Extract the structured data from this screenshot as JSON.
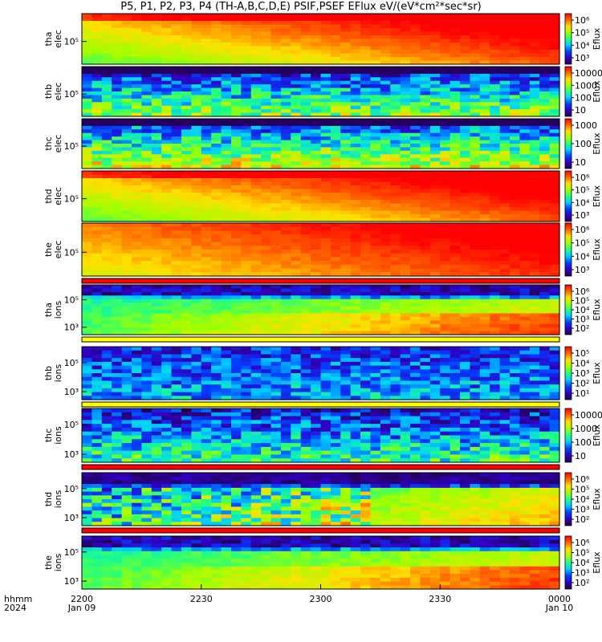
{
  "title": "P5, P1, P2, P3, P4 (TH-A,B,C,D,E) PSIF,PSEF EFlux eV/(eV*cm²*sec*sr)",
  "colors": {
    "red": "#ff0000",
    "yellow": "#ffff00",
    "black": "#000000"
  },
  "time_axis": {
    "row1_prefix": "hhmm",
    "row2_prefix": "2024",
    "ticks": [
      {
        "t": 0,
        "top": "2200",
        "bottom": "Jan 09"
      },
      {
        "t": 30,
        "top": "2230",
        "bottom": ""
      },
      {
        "t": 60,
        "top": "2300",
        "bottom": ""
      },
      {
        "t": 90,
        "top": "2330",
        "bottom": ""
      },
      {
        "t": 120,
        "top": "0000",
        "bottom": "Jan 10"
      }
    ],
    "range_minutes": [
      0,
      120
    ]
  },
  "colorbar_label": "Eflux",
  "chart_data": [
    {
      "type": "heatmap",
      "probe": "tha",
      "species": "elec",
      "yticks": [
        "10⁵"
      ],
      "colorbar_ticks": [
        "10⁶",
        "10⁵",
        "10⁴",
        "10³"
      ],
      "strip_after": ""
    },
    {
      "type": "heatmap",
      "probe": "thb",
      "species": "elec",
      "yticks": [
        "10⁵"
      ],
      "colorbar_ticks": [
        "10000",
        "1000",
        "100",
        "10"
      ],
      "strip_after": ""
    },
    {
      "type": "heatmap",
      "probe": "thc",
      "species": "elec",
      "yticks": [
        "10⁵"
      ],
      "colorbar_ticks": [
        "1000",
        "100",
        "10"
      ],
      "strip_after": ""
    },
    {
      "type": "heatmap",
      "probe": "thd",
      "species": "elec",
      "yticks": [
        "10⁵"
      ],
      "colorbar_ticks": [
        "10⁶",
        "10⁵",
        "10⁴",
        "10³"
      ],
      "strip_after": ""
    },
    {
      "type": "heatmap",
      "probe": "the",
      "species": "elec",
      "yticks": [
        "10⁵"
      ],
      "colorbar_ticks": [
        "10⁶",
        "10⁵",
        "10⁴",
        "10³"
      ],
      "strip_after": "red"
    },
    {
      "type": "heatmap",
      "probe": "tha",
      "species": "ions",
      "yticks": [
        "10⁵",
        "10³"
      ],
      "colorbar_ticks": [
        "10⁶",
        "10⁵",
        "10⁴",
        "10³",
        "10²"
      ],
      "strip_after": "yellow"
    },
    {
      "type": "heatmap",
      "probe": "thb",
      "species": "ions",
      "yticks": [
        "10⁵",
        "10³"
      ],
      "colorbar_ticks": [
        "10⁵",
        "10⁴",
        "10³",
        "10²",
        "10¹"
      ],
      "strip_after": "yellow"
    },
    {
      "type": "heatmap",
      "probe": "thc",
      "species": "ions",
      "yticks": [
        "10⁵",
        "10³"
      ],
      "colorbar_ticks": [
        "10000",
        "1000",
        "100",
        "10"
      ],
      "strip_after": "red"
    },
    {
      "type": "heatmap",
      "probe": "thd",
      "species": "ions",
      "yticks": [
        "10⁵",
        "10³"
      ],
      "colorbar_ticks": [
        "10⁶",
        "10⁵",
        "10⁴",
        "10³",
        "10²"
      ],
      "strip_after": "red"
    },
    {
      "type": "heatmap",
      "probe": "the",
      "species": "ions",
      "yticks": [
        "10⁵",
        "10³"
      ],
      "colorbar_ticks": [
        "10⁶",
        "10⁵",
        "10⁴",
        "10³",
        "10²"
      ],
      "strip_after": ""
    }
  ]
}
